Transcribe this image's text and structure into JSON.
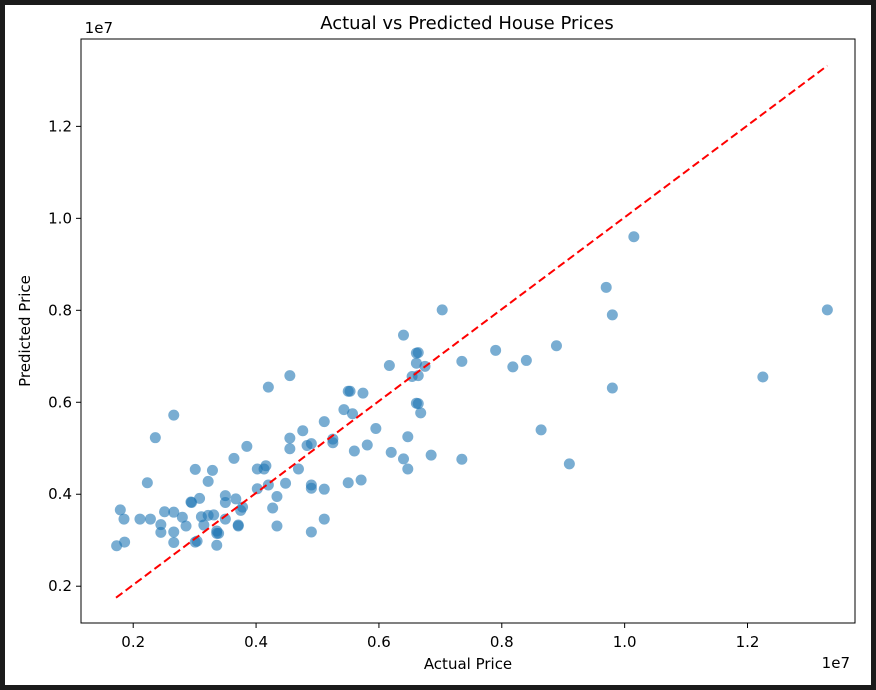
{
  "chart_data": {
    "type": "scatter",
    "title": "Actual vs Predicted House Prices",
    "xlabel": "Actual Price",
    "ylabel": "Predicted Price",
    "x_offset_label": "1e7",
    "y_offset_label": "1e7",
    "x_ticks": [
      0.2,
      0.4,
      0.6,
      0.8,
      1.0,
      1.2
    ],
    "x_tick_labels": [
      "0.2",
      "0.4",
      "0.6",
      "0.8",
      "1.0",
      "1.2"
    ],
    "y_ticks": [
      0.2,
      0.4,
      0.6,
      0.8,
      1.0,
      1.2
    ],
    "y_tick_labels": [
      "0.2",
      "0.4",
      "0.6",
      "0.8",
      "1.0",
      "1.2"
    ],
    "xlim": [
      0.115,
      1.375
    ],
    "ylim": [
      0.12,
      1.39
    ],
    "grid": false,
    "series": [
      {
        "kind": "scatter",
        "color": "#1f77b4",
        "alpha": 0.6,
        "points": [
          [
            0.173,
            0.288
          ],
          [
            0.179,
            0.366
          ],
          [
            0.186,
            0.296
          ],
          [
            0.185,
            0.346
          ],
          [
            0.211,
            0.346
          ],
          [
            0.223,
            0.425
          ],
          [
            0.228,
            0.346
          ],
          [
            0.236,
            0.523
          ],
          [
            0.245,
            0.334
          ],
          [
            0.245,
            0.317
          ],
          [
            0.251,
            0.362
          ],
          [
            0.266,
            0.295
          ],
          [
            0.266,
            0.318
          ],
          [
            0.266,
            0.361
          ],
          [
            0.266,
            0.572
          ],
          [
            0.28,
            0.35
          ],
          [
            0.286,
            0.331
          ],
          [
            0.295,
            0.382
          ],
          [
            0.294,
            0.383
          ],
          [
            0.301,
            0.296
          ],
          [
            0.301,
            0.454
          ],
          [
            0.304,
            0.298
          ],
          [
            0.308,
            0.391
          ],
          [
            0.311,
            0.351
          ],
          [
            0.315,
            0.333
          ],
          [
            0.322,
            0.428
          ],
          [
            0.322,
            0.354
          ],
          [
            0.329,
            0.452
          ],
          [
            0.331,
            0.355
          ],
          [
            0.336,
            0.32
          ],
          [
            0.336,
            0.315
          ],
          [
            0.336,
            0.289
          ],
          [
            0.339,
            0.315
          ],
          [
            0.35,
            0.397
          ],
          [
            0.35,
            0.382
          ],
          [
            0.35,
            0.346
          ],
          [
            0.364,
            0.478
          ],
          [
            0.367,
            0.39
          ],
          [
            0.371,
            0.331
          ],
          [
            0.371,
            0.333
          ],
          [
            0.375,
            0.365
          ],
          [
            0.378,
            0.372
          ],
          [
            0.385,
            0.504
          ],
          [
            0.402,
            0.455
          ],
          [
            0.402,
            0.412
          ],
          [
            0.413,
            0.455
          ],
          [
            0.416,
            0.462
          ],
          [
            0.42,
            0.42
          ],
          [
            0.42,
            0.633
          ],
          [
            0.427,
            0.37
          ],
          [
            0.434,
            0.395
          ],
          [
            0.434,
            0.331
          ],
          [
            0.448,
            0.424
          ],
          [
            0.455,
            0.499
          ],
          [
            0.455,
            0.522
          ],
          [
            0.455,
            0.658
          ],
          [
            0.469,
            0.455
          ],
          [
            0.476,
            0.538
          ],
          [
            0.483,
            0.506
          ],
          [
            0.49,
            0.51
          ],
          [
            0.49,
            0.42
          ],
          [
            0.49,
            0.413
          ],
          [
            0.49,
            0.318
          ],
          [
            0.511,
            0.558
          ],
          [
            0.511,
            0.346
          ],
          [
            0.511,
            0.411
          ],
          [
            0.525,
            0.512
          ],
          [
            0.525,
            0.52
          ],
          [
            0.543,
            0.584
          ],
          [
            0.55,
            0.425
          ],
          [
            0.55,
            0.624
          ],
          [
            0.553,
            0.624
          ],
          [
            0.557,
            0.575
          ],
          [
            0.56,
            0.494
          ],
          [
            0.571,
            0.431
          ],
          [
            0.574,
            0.62
          ],
          [
            0.581,
            0.507
          ],
          [
            0.595,
            0.543
          ],
          [
            0.617,
            0.68
          ],
          [
            0.62,
            0.491
          ],
          [
            0.64,
            0.746
          ],
          [
            0.64,
            0.477
          ],
          [
            0.647,
            0.525
          ],
          [
            0.647,
            0.455
          ],
          [
            0.654,
            0.656
          ],
          [
            0.661,
            0.685
          ],
          [
            0.661,
            0.707
          ],
          [
            0.661,
            0.598
          ],
          [
            0.664,
            0.597
          ],
          [
            0.664,
            0.708
          ],
          [
            0.664,
            0.658
          ],
          [
            0.668,
            0.577
          ],
          [
            0.675,
            0.678
          ],
          [
            0.685,
            0.485
          ],
          [
            0.703,
            0.801
          ],
          [
            0.735,
            0.689
          ],
          [
            0.735,
            0.476
          ],
          [
            0.79,
            0.713
          ],
          [
            0.818,
            0.677
          ],
          [
            0.84,
            0.691
          ],
          [
            0.864,
            0.54
          ],
          [
            0.889,
            0.723
          ],
          [
            0.91,
            0.466
          ],
          [
            0.97,
            0.85
          ],
          [
            0.98,
            0.79
          ],
          [
            0.98,
            0.631
          ],
          [
            1.015,
            0.96
          ],
          [
            1.225,
            0.655
          ],
          [
            1.33,
            0.801
          ]
        ]
      },
      {
        "kind": "line",
        "style": "dashed",
        "color": "#ff0000",
        "points": [
          [
            0.172,
            0.175
          ],
          [
            1.33,
            1.332
          ]
        ]
      }
    ]
  }
}
